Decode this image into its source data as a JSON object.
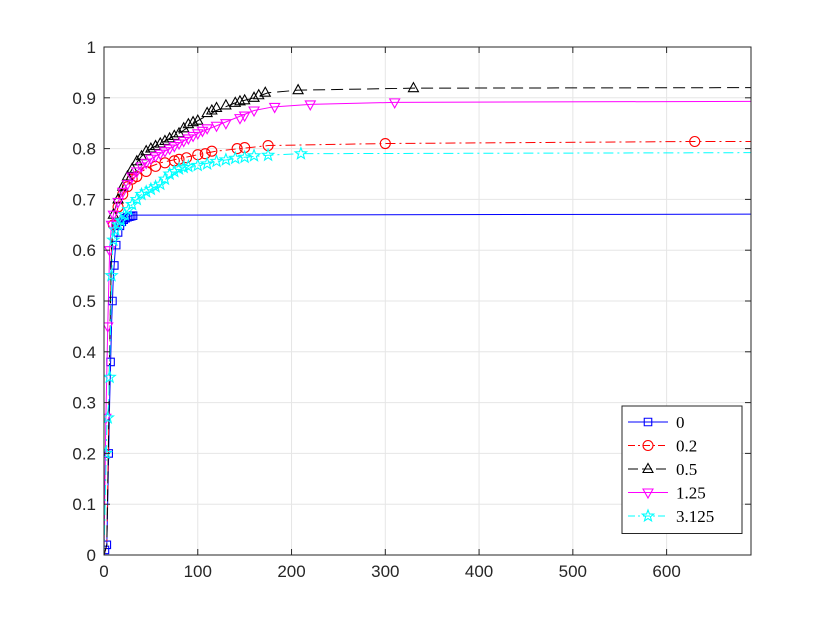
{
  "chart_data": {
    "type": "line",
    "title": "",
    "xlabel": "",
    "ylabel": "",
    "xlim": [
      0,
      690
    ],
    "ylim": [
      0,
      1
    ],
    "xticks": [
      0,
      100,
      200,
      300,
      400,
      500,
      600
    ],
    "yticks": [
      0,
      0.1,
      0.2,
      0.3,
      0.4,
      0.5,
      0.6,
      0.7,
      0.8,
      0.9,
      1
    ],
    "xtick_labels": [
      "0",
      "100",
      "200",
      "300",
      "400",
      "500",
      "600"
    ],
    "ytick_labels": [
      "0",
      "0.1",
      "0.2",
      "0.3",
      "0.4",
      "0.5",
      "0.6",
      "0.7",
      "0.8",
      "0.9",
      "1"
    ],
    "grid": true,
    "legend_position": "bottom-right",
    "series": [
      {
        "name": "0",
        "color": "#0000ff",
        "dash": "solid",
        "marker": "square",
        "x": [
          0,
          3,
          5,
          6,
          8,
          10,
          12,
          14,
          16,
          18,
          20,
          22,
          25,
          28,
          30,
          32,
          690
        ],
        "y": [
          0,
          0.02,
          0.2,
          0.3,
          0.45,
          0.55,
          0.6,
          0.63,
          0.645,
          0.655,
          0.66,
          0.663,
          0.665,
          0.667,
          0.668,
          0.669,
          0.671
        ],
        "marker_x": [
          1,
          3,
          5,
          7,
          9,
          11,
          13,
          15,
          17,
          19,
          21,
          23,
          25,
          27,
          29,
          31
        ],
        "marker_y": [
          0.01,
          0.02,
          0.2,
          0.38,
          0.5,
          0.57,
          0.61,
          0.635,
          0.648,
          0.656,
          0.66,
          0.663,
          0.665,
          0.666,
          0.667,
          0.668
        ]
      },
      {
        "name": "0.2",
        "color": "#ff0000",
        "dash": "dashdot",
        "marker": "circle",
        "x": [
          0,
          3,
          5,
          6,
          8,
          10,
          15,
          20,
          30,
          40,
          50,
          60,
          80,
          100,
          120,
          150,
          175,
          300,
          630,
          690
        ],
        "y": [
          0,
          0.02,
          0.25,
          0.4,
          0.6,
          0.65,
          0.685,
          0.71,
          0.74,
          0.755,
          0.765,
          0.772,
          0.78,
          0.788,
          0.795,
          0.801,
          0.806,
          0.81,
          0.814,
          0.814
        ],
        "marker_x": [
          10,
          15,
          20,
          25,
          30,
          35,
          45,
          55,
          65,
          75,
          80,
          88,
          100,
          108,
          115,
          142,
          150,
          175,
          300,
          630
        ],
        "marker_y": [
          0.65,
          0.685,
          0.71,
          0.725,
          0.74,
          0.745,
          0.755,
          0.765,
          0.772,
          0.776,
          0.779,
          0.782,
          0.788,
          0.79,
          0.795,
          0.8,
          0.802,
          0.806,
          0.81,
          0.814
        ]
      },
      {
        "name": "0.5",
        "color": "#000000",
        "dash": "dashed",
        "marker": "triangle-up",
        "x": [
          0,
          3,
          5,
          6,
          8,
          10,
          15,
          20,
          30,
          40,
          50,
          60,
          80,
          100,
          120,
          140,
          160,
          175,
          207,
          330,
          690
        ],
        "y": [
          0,
          0.02,
          0.25,
          0.4,
          0.6,
          0.67,
          0.7,
          0.725,
          0.76,
          0.785,
          0.8,
          0.81,
          0.83,
          0.855,
          0.875,
          0.89,
          0.9,
          0.91,
          0.915,
          0.919,
          0.92
        ],
        "marker_x": [
          10,
          15,
          20,
          25,
          30,
          35,
          40,
          45,
          50,
          55,
          60,
          65,
          70,
          75,
          80,
          85,
          90,
          95,
          100,
          110,
          115,
          120,
          130,
          140,
          145,
          150,
          160,
          165,
          172,
          207,
          330
        ],
        "marker_y": [
          0.67,
          0.7,
          0.725,
          0.745,
          0.76,
          0.775,
          0.785,
          0.795,
          0.8,
          0.805,
          0.81,
          0.815,
          0.82,
          0.825,
          0.83,
          0.84,
          0.848,
          0.852,
          0.855,
          0.87,
          0.875,
          0.88,
          0.885,
          0.89,
          0.893,
          0.895,
          0.9,
          0.905,
          0.91,
          0.915,
          0.919
        ]
      },
      {
        "name": "1.25",
        "color": "#ff00ff",
        "dash": "solid",
        "marker": "triangle-down",
        "x": [
          0,
          2,
          4,
          6,
          8,
          10,
          15,
          20,
          30,
          40,
          50,
          60,
          80,
          100,
          120,
          140,
          160,
          180,
          220,
          310,
          690
        ],
        "y": [
          0,
          0.27,
          0.45,
          0.6,
          0.65,
          0.67,
          0.695,
          0.715,
          0.745,
          0.765,
          0.78,
          0.79,
          0.81,
          0.83,
          0.845,
          0.86,
          0.875,
          0.882,
          0.887,
          0.891,
          0.893
        ],
        "marker_x": [
          2,
          4,
          6,
          8,
          10,
          15,
          20,
          25,
          30,
          35,
          40,
          45,
          50,
          55,
          60,
          65,
          70,
          75,
          80,
          85,
          90,
          95,
          100,
          105,
          110,
          120,
          130,
          145,
          150,
          160,
          182,
          220,
          310
        ],
        "marker_y": [
          0.27,
          0.45,
          0.6,
          0.65,
          0.67,
          0.695,
          0.715,
          0.73,
          0.745,
          0.755,
          0.765,
          0.772,
          0.78,
          0.785,
          0.79,
          0.795,
          0.8,
          0.805,
          0.81,
          0.815,
          0.82,
          0.825,
          0.83,
          0.835,
          0.84,
          0.845,
          0.85,
          0.86,
          0.865,
          0.875,
          0.882,
          0.887,
          0.891
        ]
      },
      {
        "name": "3.125",
        "color": "#00ffff",
        "dash": "dashdot",
        "marker": "pentagram",
        "x": [
          0,
          3,
          5,
          7,
          9,
          12,
          15,
          20,
          30,
          40,
          50,
          60,
          80,
          100,
          120,
          150,
          175,
          210,
          690
        ],
        "y": [
          0,
          0.25,
          0.3,
          0.45,
          0.6,
          0.64,
          0.65,
          0.665,
          0.69,
          0.71,
          0.72,
          0.73,
          0.755,
          0.767,
          0.775,
          0.783,
          0.787,
          0.79,
          0.792
        ],
        "marker_x": [
          2,
          4,
          6,
          8,
          10,
          12,
          15,
          18,
          22,
          26,
          30,
          35,
          40,
          45,
          50,
          55,
          60,
          65,
          70,
          75,
          80,
          85,
          90,
          100,
          110,
          120,
          130,
          140,
          150,
          160,
          175,
          210
        ],
        "marker_y": [
          0.2,
          0.27,
          0.35,
          0.55,
          0.62,
          0.64,
          0.65,
          0.658,
          0.67,
          0.68,
          0.69,
          0.7,
          0.71,
          0.715,
          0.72,
          0.725,
          0.73,
          0.74,
          0.75,
          0.755,
          0.76,
          0.763,
          0.765,
          0.767,
          0.77,
          0.775,
          0.778,
          0.781,
          0.783,
          0.786,
          0.787,
          0.79
        ]
      }
    ]
  }
}
